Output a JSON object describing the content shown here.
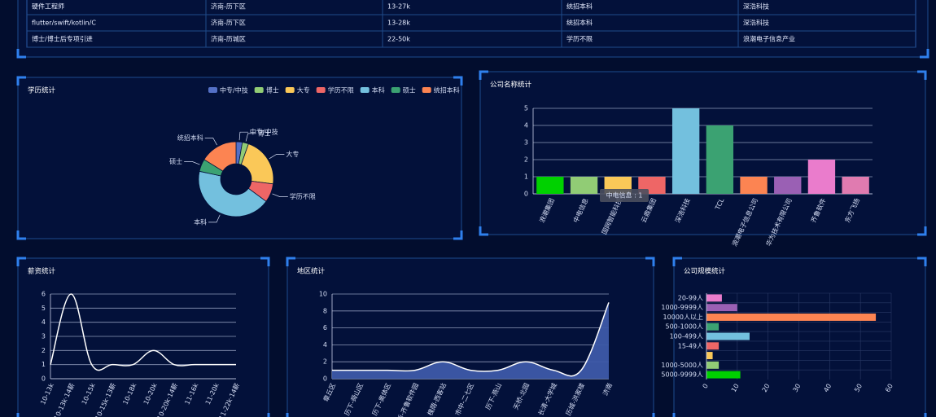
{
  "table": {
    "rows": [
      [
        "硬件工程师",
        "济南-历下区",
        "13-27k",
        "统招本科",
        "深浩科技"
      ],
      [
        "flutter/swift/kotlin/C",
        "济南-历下区",
        "13-28k",
        "统招本科",
        "深浩科技"
      ],
      [
        "博士/博士后专项引进",
        "济南-历城区",
        "22-50k",
        "学历不限",
        "浪潮电子信息产业"
      ]
    ]
  },
  "chart_data": [
    {
      "type": "pie",
      "title": "学历统计",
      "donut": true,
      "categories": [
        "中专/中技",
        "博士",
        "大专",
        "学历不限",
        "本科",
        "硕士",
        "统招本科"
      ],
      "values": [
        1,
        1,
        8,
        3,
        16,
        2,
        6
      ],
      "colors": [
        "#5470c6",
        "#91cc75",
        "#fac858",
        "#ee6666",
        "#73c0de",
        "#3ba272",
        "#fc8452"
      ]
    },
    {
      "type": "bar",
      "title": "公司名称统计",
      "categories": [
        "浪潮集团",
        "中电信息",
        "国网智能科技",
        "云鼎集团",
        "深浩科技",
        "TCL",
        "浪潮电子信息公司",
        "华为技术有限公司",
        "齐鲁软件",
        "东方飞扬"
      ],
      "values": [
        1,
        1,
        1,
        1,
        5,
        4,
        1,
        1,
        2,
        1
      ],
      "colors": [
        "#00d100",
        "#91cc75",
        "#fac858",
        "#ee6666",
        "#73c0de",
        "#3ba272",
        "#fc8452",
        "#9a60b4",
        "#ea7ccc",
        "#e07bb0"
      ],
      "ylim": [
        0,
        5
      ],
      "yticks": [
        0,
        1,
        2,
        3,
        4,
        5
      ],
      "grid": true,
      "tooltip": "中电信息 : 1"
    },
    {
      "type": "line",
      "title": "薪资统计",
      "smooth": true,
      "color": "#ffffff",
      "categories": [
        "10-13k",
        "10-13k·14薪",
        "10-15k",
        "10-15k·13薪",
        "10-18k",
        "10-20k",
        "10-20k·14薪",
        "11-16k",
        "11-20k",
        "11-22k·14薪"
      ],
      "values": [
        1,
        6,
        1,
        1,
        1,
        2,
        1,
        1,
        1,
        1
      ],
      "ylim": [
        0,
        6
      ],
      "yticks": [
        0,
        1,
        2,
        3,
        4,
        5,
        6
      ],
      "grid": true
    },
    {
      "type": "line",
      "title": "地区统计",
      "smooth": true,
      "area": true,
      "color": "#ffffff",
      "area_color": "#3d5aa8",
      "categories": [
        "章丘区",
        "历下-舜山区",
        "历下-奥体区",
        "高新-齐鲁软件园",
        "槐荫-西客站",
        "市中-二七区",
        "历下-燕山",
        "天桥-北园",
        "长清-大学城",
        "历城-洪家楼",
        "济南"
      ],
      "values": [
        1,
        1,
        1,
        1,
        2,
        1,
        1,
        2,
        1,
        1,
        9
      ],
      "ylim": [
        0,
        10
      ],
      "yticks": [
        0,
        2,
        4,
        6,
        8,
        10
      ],
      "grid": true
    },
    {
      "type": "bar",
      "title": "公司规模统计",
      "horizontal": true,
      "categories": [
        "20-99人",
        "1000-9999人",
        "10000人以上",
        "500-1000人",
        "100-499人",
        "15-49人",
        null,
        "1000-5000人",
        "5000-9999人"
      ],
      "values": [
        5,
        10,
        55,
        4,
        14,
        4,
        2,
        4,
        11
      ],
      "colors": [
        "#ea7ccc",
        "#9a60b4",
        "#fc8452",
        "#3ba272",
        "#73c0de",
        "#ee6666",
        "#fac858",
        "#91cc75",
        "#00d100"
      ],
      "xlim": [
        0,
        60
      ],
      "xticks": [
        0,
        10,
        20,
        30,
        40,
        50,
        60
      ],
      "grid": true
    }
  ]
}
